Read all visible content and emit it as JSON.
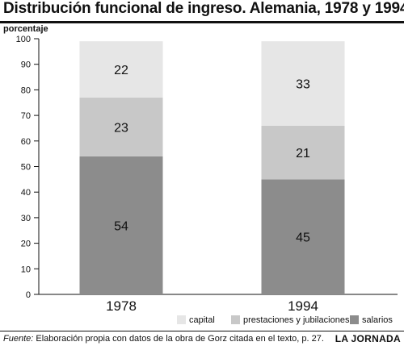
{
  "chart_data": {
    "type": "bar",
    "stacked": true,
    "title": "Distribución funcional de ingreso. Alemania, 1978 y 1994",
    "ylabel": "porcentaje",
    "xlabel": "",
    "categories": [
      "1978",
      "1994"
    ],
    "series": [
      {
        "name": "salarios",
        "values": [
          54,
          45
        ],
        "color": "#8c8c8c"
      },
      {
        "name": "prestaciones y jubilaciones",
        "values": [
          23,
          21
        ],
        "color": "#c8c8c8"
      },
      {
        "name": "capital",
        "values": [
          22,
          33
        ],
        "color": "#e6e6e6"
      }
    ],
    "ylim": [
      0,
      100
    ],
    "yticks": [
      0,
      10,
      20,
      30,
      40,
      50,
      60,
      70,
      80,
      90,
      100
    ],
    "grid": false,
    "legend": "bottom-right",
    "legend_order": [
      "capital",
      "prestaciones y jubilaciones",
      "salarios"
    ]
  },
  "source": {
    "lead": "Fuente:",
    "text": " Elaboración propia con datos de la obra de Gorz citada en el texto, p. 27."
  },
  "brand": "LA JORNADA"
}
